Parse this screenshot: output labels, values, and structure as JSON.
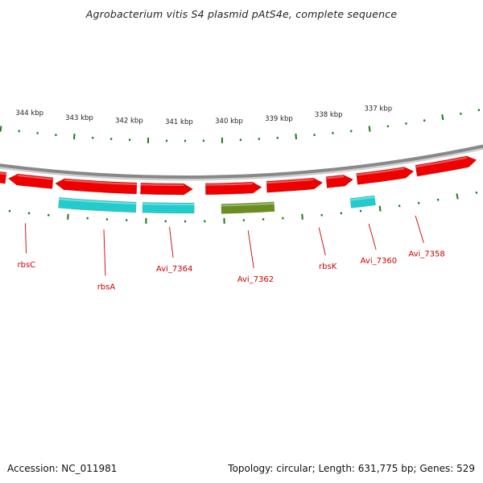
{
  "title": "Agrobacterium vitis S4 plasmid pAtS4e, complete sequence",
  "footer": {
    "accession": "Accession: NC_011981",
    "summary": "Topology: circular; Length: 631,775 bp; Genes: 529"
  },
  "scale": {
    "unit": "kbp",
    "ticks": [
      "344 kbp",
      "343 kbp",
      "342 kbp",
      "341 kbp",
      "340 kbp",
      "339 kbp",
      "338 kbp",
      "337 kbp"
    ]
  },
  "colors": {
    "backbone": "#888888",
    "tick": "#1a7a1a",
    "label": "#cc0000",
    "red_feature": "#ee0000",
    "cyan_feature": "#22cccc",
    "olive_feature": "#6b8e23",
    "orange_feature": "#ff8c00"
  },
  "genes": [
    {
      "label": "rbsC"
    },
    {
      "label": "rbsA"
    },
    {
      "label": "Avi_7364"
    },
    {
      "label": "Avi_7362"
    },
    {
      "label": "rbsK"
    },
    {
      "label": "Avi_7360"
    },
    {
      "label": "Avi_7358"
    }
  ]
}
